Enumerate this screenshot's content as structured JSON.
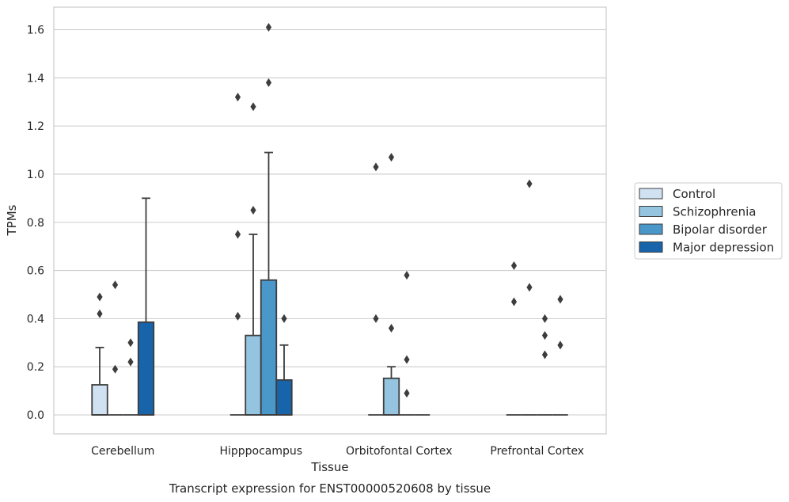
{
  "chart_data": {
    "type": "box",
    "caption": "Transcript expression for ENST00000520608 by tissue",
    "xlabel": "Tissue",
    "ylabel": "TPMs",
    "ylim": [
      -0.08,
      1.69
    ],
    "yticks": [
      "0.0",
      "0.2",
      "0.4",
      "0.6",
      "0.8",
      "1.0",
      "1.2",
      "1.4",
      "1.6"
    ],
    "grid": true,
    "legend_position": "right",
    "categories": [
      "Cerebellum",
      "Hipppocampus",
      "Orbitofontal Cortex",
      "Prefrontal Cortex"
    ],
    "series": [
      {
        "name": "Control",
        "color": "#d0e1f2",
        "boxes": [
          {
            "q1": 0,
            "median": 0,
            "q3": 0.125,
            "whisker_low": 0,
            "whisker_high": 0.28,
            "outliers": [
              0.42,
              0.49
            ]
          },
          {
            "q1": 0,
            "median": 0,
            "q3": 0,
            "whisker_low": 0,
            "whisker_high": 0,
            "outliers": [
              0.41,
              0.75,
              1.32
            ]
          },
          {
            "q1": 0,
            "median": 0,
            "q3": 0,
            "whisker_low": 0,
            "whisker_high": 0,
            "outliers": [
              0.4,
              1.03
            ]
          },
          {
            "q1": 0,
            "median": 0,
            "q3": 0,
            "whisker_low": 0,
            "whisker_high": 0,
            "outliers": [
              0.47,
              0.62
            ]
          }
        ]
      },
      {
        "name": "Schizophrenia",
        "color": "#94c4df",
        "boxes": [
          {
            "q1": 0,
            "median": 0,
            "q3": 0,
            "whisker_low": 0,
            "whisker_high": 0,
            "outliers": [
              0.19,
              0.54
            ]
          },
          {
            "q1": 0,
            "median": 0,
            "q3": 0.33,
            "whisker_low": 0,
            "whisker_high": 0.75,
            "outliers": [
              0.85,
              1.28
            ]
          },
          {
            "q1": 0,
            "median": 0,
            "q3": 0.152,
            "whisker_low": 0,
            "whisker_high": 0.2,
            "outliers": [
              0.36,
              1.07
            ]
          },
          {
            "q1": 0,
            "median": 0,
            "q3": 0,
            "whisker_low": 0,
            "whisker_high": 0,
            "outliers": [
              0.53,
              0.96
            ]
          }
        ]
      },
      {
        "name": "Bipolar disorder",
        "color": "#4a98c9",
        "boxes": [
          {
            "q1": 0,
            "median": 0,
            "q3": 0,
            "whisker_low": 0,
            "whisker_high": 0,
            "outliers": [
              0.22,
              0.3
            ]
          },
          {
            "q1": 0,
            "median": 0,
            "q3": 0.56,
            "whisker_low": 0,
            "whisker_high": 1.09,
            "outliers": [
              1.38,
              1.61
            ]
          },
          {
            "q1": 0,
            "median": 0,
            "q3": 0,
            "whisker_low": 0,
            "whisker_high": 0,
            "outliers": [
              0.09,
              0.23,
              0.58
            ]
          },
          {
            "q1": 0,
            "median": 0,
            "q3": 0,
            "whisker_low": 0,
            "whisker_high": 0,
            "outliers": [
              0.25,
              0.33,
              0.4
            ]
          }
        ]
      },
      {
        "name": "Major depression",
        "color": "#1764ab",
        "boxes": [
          {
            "q1": 0,
            "median": 0,
            "q3": 0.385,
            "whisker_low": 0,
            "whisker_high": 0.9,
            "outliers": []
          },
          {
            "q1": 0,
            "median": 0,
            "q3": 0.145,
            "whisker_low": 0,
            "whisker_high": 0.29,
            "outliers": [
              0.4
            ]
          },
          {
            "q1": 0,
            "median": 0,
            "q3": 0,
            "whisker_low": 0,
            "whisker_high": 0,
            "outliers": []
          },
          {
            "q1": 0,
            "median": 0,
            "q3": 0,
            "whisker_low": 0,
            "whisker_high": 0,
            "outliers": [
              0.29,
              0.48
            ]
          }
        ]
      }
    ]
  }
}
